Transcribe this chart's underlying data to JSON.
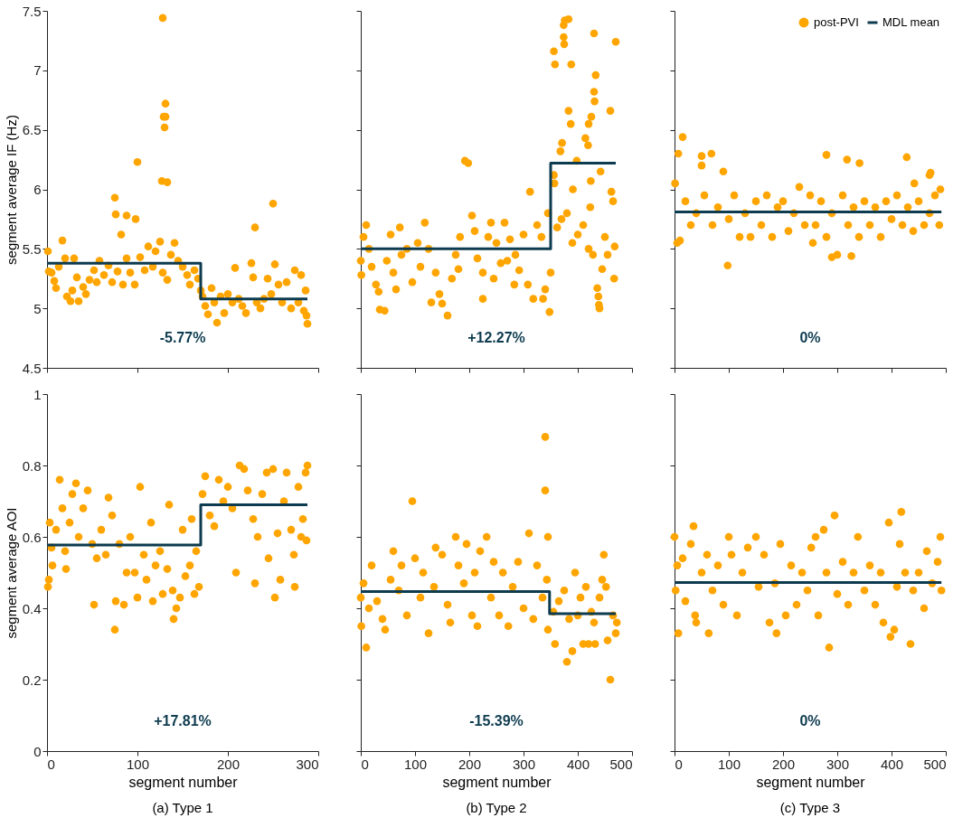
{
  "chart_data": [
    {
      "type": "scatter",
      "ylabel": "segment average IF (Hz)",
      "xlim": [
        0,
        300
      ],
      "xticks": [
        0,
        100,
        200,
        300
      ],
      "ylim": [
        4.5,
        7.5
      ],
      "yticks": [
        4.5,
        5,
        5.5,
        6,
        6.5,
        7,
        7.5
      ],
      "tick_labels": "y",
      "marker": "circle",
      "annotations": [
        "-5.77%"
      ],
      "series": [
        {
          "color": "#ffa500",
          "x": [
            1,
            2,
            5,
            8,
            10,
            13,
            17,
            20,
            22,
            26,
            28,
            30,
            33,
            35,
            40,
            43,
            47,
            52,
            55,
            58,
            63,
            68,
            72,
            78,
            84,
            88,
            92,
            97,
            103,
            108,
            112,
            117,
            120,
            125,
            128,
            133,
            137,
            141,
            145,
            150,
            155,
            158,
            163,
            167,
            170,
            172,
            175,
            178,
            182,
            185,
            188,
            192,
            196,
            200,
            205,
            208,
            212,
            216,
            220,
            226,
            228,
            232,
            236,
            240,
            244,
            248,
            252,
            256,
            260,
            265,
            270,
            274,
            278,
            281,
            284,
            286,
            287,
            288,
            128,
            131,
            129,
            131,
            130,
            127,
            133,
            100,
            75,
            76,
            88,
            98,
            82,
            250,
            230
          ],
          "values": [
            5.48,
            5.31,
            5.3,
            5.23,
            5.17,
            5.35,
            5.57,
            5.42,
            5.1,
            5.06,
            5.15,
            5.42,
            5.26,
            5.06,
            5.18,
            5.12,
            5.24,
            5.32,
            5.22,
            5.4,
            5.28,
            5.36,
            5.22,
            5.31,
            5.2,
            5.42,
            5.3,
            5.2,
            5.43,
            5.32,
            5.52,
            5.35,
            5.48,
            5.56,
            5.3,
            5.24,
            5.45,
            5.55,
            5.4,
            5.35,
            5.28,
            5.2,
            5.32,
            5.25,
            5.15,
            5.1,
            5.02,
            4.95,
            5.17,
            5.05,
            4.88,
            5.1,
            4.96,
            5.12,
            5.05,
            5.34,
            5.08,
            5.02,
            4.96,
            5.38,
            5.26,
            5.05,
            5.0,
            5.08,
            5.25,
            5.12,
            5.37,
            5.2,
            5.05,
            5.22,
            5.0,
            5.32,
            5.05,
            5.28,
            4.98,
            5.15,
            4.94,
            4.87,
            7.44,
            6.72,
            6.61,
            6.61,
            6.52,
            6.07,
            6.06,
            6.23,
            5.93,
            5.79,
            5.78,
            5.75,
            5.62,
            5.88,
            5.68
          ]
        },
        {
          "type": "line",
          "marker": "none",
          "color": "#0d3b4f",
          "x": [
            0,
            170,
            170,
            288
          ],
          "values": [
            5.38,
            5.38,
            5.08,
            5.08
          ]
        }
      ]
    },
    {
      "type": "scatter",
      "xlim": [
        0,
        500
      ],
      "xticks": [
        0,
        100,
        200,
        300,
        400,
        500
      ],
      "ylim": [
        4.5,
        7.5
      ],
      "yticks": [
        4.5,
        5,
        5.5,
        6,
        6.5,
        7,
        7.5
      ],
      "tick_labels": false,
      "marker": "circle",
      "annotations": [
        "+12.27%"
      ],
      "series": [
        {
          "color": "#ffa500",
          "x": [
            0,
            1,
            5,
            10,
            15,
            20,
            28,
            33,
            35,
            44,
            48,
            55,
            60,
            65,
            72,
            75,
            95,
            105,
            118,
            125,
            130,
            138,
            145,
            150,
            160,
            168,
            175,
            183,
            192,
            198,
            205,
            210,
            215,
            225,
            225,
            235,
            240,
            250,
            258,
            265,
            275,
            285,
            292,
            300,
            308,
            312,
            318,
            325,
            333,
            345,
            283,
            270,
            110,
            85,
            180,
            245,
            356,
            358,
            374,
            376,
            383,
            374,
            375,
            388,
            430,
            470,
            430,
            431,
            433,
            425,
            387,
            383,
            371,
            368,
            414,
            419,
            420,
            424,
            442,
            460,
            398,
            356,
            357,
            391,
            423,
            462,
            465,
            428,
            440,
            438,
            436,
            439,
            467,
            445,
            348,
            340,
            336,
            350,
            370,
            380,
            362,
            390,
            400,
            410,
            420,
            450,
            455,
            468
          ],
          "values": [
            5.4,
            5.28,
            5.6,
            5.7,
            5.5,
            5.35,
            5.2,
            5.14,
            4.99,
            4.98,
            5.4,
            5.62,
            5.3,
            5.16,
            5.68,
            5.45,
            5.22,
            5.55,
            5.72,
            5.5,
            5.05,
            5.3,
            5.12,
            5.04,
            4.94,
            5.25,
            5.45,
            5.6,
            6.24,
            6.22,
            5.78,
            5.65,
            5.42,
            5.3,
            5.08,
            5.6,
            5.72,
            5.55,
            5.38,
            5.72,
            5.58,
            5.45,
            5.32,
            5.62,
            5.2,
            5.98,
            5.08,
            5.7,
            5.6,
            5.8,
            5.2,
            5.4,
            5.35,
            5.5,
            5.33,
            5.25,
            7.16,
            7.05,
            7.38,
            7.42,
            7.43,
            7.28,
            7.22,
            7.05,
            7.31,
            7.24,
            6.82,
            6.74,
            6.96,
            6.61,
            6.55,
            6.66,
            6.39,
            6.32,
            6.43,
            6.37,
            6.55,
            6.07,
            6.15,
            6.66,
            6.24,
            6.12,
            6.05,
            6.0,
            5.85,
            5.98,
            5.9,
            5.45,
            5.0,
            5.1,
            5.17,
            5.03,
            5.25,
            5.33,
            4.97,
            5.16,
            5.08,
            5.3,
            5.75,
            5.8,
            5.68,
            5.55,
            5.62,
            5.7,
            5.5,
            5.6,
            5.45,
            5.52
          ]
        },
        {
          "type": "line",
          "marker": "none",
          "color": "#0d3b4f",
          "x": [
            0,
            350,
            350,
            470
          ],
          "values": [
            5.5,
            5.5,
            6.22,
            6.22
          ]
        }
      ]
    },
    {
      "type": "scatter",
      "xlim": [
        0,
        500
      ],
      "xticks": [
        0,
        100,
        200,
        300,
        400,
        500
      ],
      "ylim": [
        4.5,
        7.5
      ],
      "yticks": [
        4.5,
        5,
        5.5,
        6,
        6.5,
        7,
        7.5
      ],
      "tick_labels": false,
      "marker": "circle",
      "legend": "top right",
      "annotations": [
        "0%"
      ],
      "series": [
        {
          "name": "post-PVI",
          "color": "#ffa500",
          "x": [
            1,
            7,
            15,
            50,
            50,
            68,
            90,
            98,
            280,
            318,
            341,
            428,
            442,
            470,
            472,
            290,
            300,
            5,
            10,
            255,
            326,
            20,
            30,
            40,
            55,
            70,
            80,
            100,
            110,
            120,
            130,
            140,
            150,
            160,
            170,
            180,
            190,
            200,
            210,
            220,
            230,
            240,
            250,
            260,
            270,
            280,
            290,
            310,
            320,
            330,
            340,
            350,
            360,
            370,
            380,
            390,
            400,
            410,
            420,
            430,
            440,
            450,
            460,
            470,
            480,
            490,
            488
          ],
          "values": [
            6.05,
            6.3,
            6.44,
            6.28,
            6.2,
            6.3,
            6.15,
            5.36,
            6.29,
            6.25,
            6.22,
            6.27,
            6.05,
            6.12,
            6.14,
            5.43,
            5.45,
            5.55,
            5.57,
            5.55,
            5.44,
            5.9,
            5.7,
            5.8,
            5.95,
            5.7,
            5.85,
            5.75,
            5.95,
            5.6,
            5.8,
            5.6,
            5.9,
            5.7,
            5.95,
            5.6,
            5.85,
            5.9,
            5.65,
            5.8,
            6.02,
            5.7,
            5.95,
            5.7,
            5.9,
            5.6,
            5.8,
            5.95,
            5.7,
            5.85,
            5.6,
            5.9,
            5.7,
            5.85,
            5.6,
            5.9,
            5.75,
            5.95,
            5.7,
            5.85,
            5.65,
            5.9,
            5.7,
            5.8,
            5.95,
            6.0,
            5.7
          ]
        },
        {
          "type": "line",
          "marker": "none",
          "name": "MDL mean",
          "color": "#0d3b4f",
          "x": [
            0,
            492
          ],
          "values": [
            5.81,
            5.81
          ]
        }
      ]
    },
    {
      "type": "scatter",
      "title": "(a) Type 1",
      "xlabel": "segment number",
      "ylabel": "segment average AOI",
      "xlim": [
        0,
        300
      ],
      "xticks": [
        0,
        100,
        200,
        300
      ],
      "ylim": [
        0,
        1
      ],
      "yticks": [
        0,
        0.2,
        0.4,
        0.6,
        0.8,
        1
      ],
      "marker": "circle",
      "annotations": [
        "+17.81%"
      ],
      "series": [
        {
          "color": "#ffa500",
          "x": [
            1,
            2,
            3,
            5,
            6,
            10,
            14,
            17,
            20,
            21,
            25,
            28,
            32,
            35,
            40,
            45,
            50,
            52,
            55,
            60,
            65,
            68,
            72,
            75,
            76,
            80,
            85,
            88,
            92,
            97,
            100,
            103,
            107,
            110,
            115,
            117,
            120,
            125,
            128,
            133,
            135,
            139,
            140,
            143,
            147,
            150,
            153,
            158,
            160,
            163,
            165,
            168,
            172,
            175,
            180,
            185,
            190,
            195,
            200,
            205,
            209,
            213,
            218,
            222,
            228,
            230,
            233,
            238,
            243,
            245,
            250,
            252,
            255,
            258,
            262,
            265,
            270,
            273,
            274,
            278,
            281,
            283,
            286,
            288,
            287
          ],
          "values": [
            0.46,
            0.48,
            0.64,
            0.57,
            0.52,
            0.62,
            0.76,
            0.68,
            0.56,
            0.51,
            0.64,
            0.72,
            0.75,
            0.6,
            0.68,
            0.73,
            0.58,
            0.41,
            0.54,
            0.62,
            0.55,
            0.71,
            0.66,
            0.34,
            0.42,
            0.58,
            0.41,
            0.5,
            0.6,
            0.5,
            0.43,
            0.74,
            0.55,
            0.48,
            0.64,
            0.42,
            0.52,
            0.56,
            0.44,
            0.51,
            0.69,
            0.45,
            0.37,
            0.4,
            0.43,
            0.62,
            0.49,
            0.52,
            0.65,
            0.44,
            0.56,
            0.46,
            0.72,
            0.77,
            0.66,
            0.63,
            0.76,
            0.7,
            0.74,
            0.68,
            0.5,
            0.8,
            0.79,
            0.73,
            0.65,
            0.47,
            0.6,
            0.72,
            0.78,
            0.54,
            0.79,
            0.43,
            0.61,
            0.48,
            0.7,
            0.78,
            0.62,
            0.55,
            0.46,
            0.74,
            0.6,
            0.65,
            0.78,
            0.8,
            0.59
          ]
        },
        {
          "type": "line",
          "marker": "none",
          "color": "#0d3b4f",
          "x": [
            0,
            170,
            170,
            288
          ],
          "values": [
            0.577,
            0.577,
            0.69,
            0.69
          ]
        }
      ]
    },
    {
      "type": "scatter",
      "title": "(b) Type 2",
      "xlabel": "segment number",
      "xlim": [
        0,
        500
      ],
      "xticks": [
        0,
        100,
        200,
        300,
        400,
        500
      ],
      "ylim": [
        0,
        1
      ],
      "yticks": [
        0,
        0.2,
        0.4,
        0.6,
        0.8,
        1
      ],
      "tick_labels": "x",
      "marker": "circle",
      "annotations": [
        "-15.39%"
      ],
      "series": [
        {
          "color": "#ffa500",
          "x": [
            0,
            1,
            5,
            10,
            15,
            20,
            30,
            40,
            45,
            55,
            60,
            70,
            75,
            85,
            95,
            100,
            110,
            115,
            125,
            135,
            138,
            150,
            160,
            165,
            175,
            180,
            190,
            195,
            205,
            210,
            215,
            220,
            232,
            240,
            245,
            255,
            262,
            272,
            280,
            290,
            300,
            310,
            318,
            325,
            335,
            340,
            340,
            343,
            345,
            345,
            355,
            358,
            365,
            375,
            380,
            384,
            390,
            395,
            405,
            410,
            415,
            420,
            425,
            432,
            440,
            445,
            448,
            452,
            455,
            460,
            465,
            470,
            472,
            430,
            400
          ],
          "values": [
            0.43,
            0.35,
            0.47,
            0.29,
            0.4,
            0.52,
            0.42,
            0.37,
            0.34,
            0.48,
            0.56,
            0.45,
            0.52,
            0.38,
            0.7,
            0.54,
            0.43,
            0.5,
            0.33,
            0.46,
            0.57,
            0.55,
            0.41,
            0.36,
            0.6,
            0.52,
            0.47,
            0.58,
            0.38,
            0.5,
            0.35,
            0.56,
            0.6,
            0.43,
            0.53,
            0.38,
            0.5,
            0.35,
            0.46,
            0.53,
            0.4,
            0.61,
            0.37,
            0.52,
            0.43,
            0.88,
            0.73,
            0.48,
            0.6,
            0.34,
            0.39,
            0.3,
            0.42,
            0.45,
            0.25,
            0.37,
            0.28,
            0.5,
            0.43,
            0.3,
            0.46,
            0.3,
            0.39,
            0.3,
            0.43,
            0.48,
            0.55,
            0.46,
            0.31,
            0.2,
            0.38,
            0.33,
            0.36,
            0.36,
            0.38
          ]
        },
        {
          "type": "line",
          "marker": "none",
          "color": "#0d3b4f",
          "x": [
            0,
            348,
            348,
            470
          ],
          "values": [
            0.447,
            0.447,
            0.385,
            0.385
          ]
        }
      ]
    },
    {
      "type": "scatter",
      "title": "(c) Type 3",
      "xlabel": "segment number",
      "xlim": [
        0,
        500
      ],
      "xticks": [
        0,
        100,
        200,
        300,
        400,
        500
      ],
      "ylim": [
        0,
        1
      ],
      "yticks": [
        0,
        0.2,
        0.4,
        0.6,
        0.8,
        1
      ],
      "tick_labels": "x",
      "marker": "circle",
      "annotations": [
        "0%"
      ],
      "series": [
        {
          "color": "#ffa500",
          "x": [
            0,
            2,
            5,
            7,
            15,
            20,
            30,
            35,
            38,
            40,
            50,
            60,
            63,
            70,
            80,
            90,
            100,
            105,
            115,
            125,
            135,
            150,
            155,
            165,
            175,
            185,
            188,
            195,
            205,
            215,
            225,
            235,
            245,
            252,
            260,
            265,
            275,
            280,
            285,
            295,
            300,
            310,
            320,
            330,
            338,
            350,
            360,
            370,
            380,
            385,
            395,
            398,
            405,
            410,
            415,
            418,
            425,
            435,
            440,
            450,
            460,
            465,
            475,
            485,
            490,
            492
          ],
          "values": [
            0.6,
            0.45,
            0.52,
            0.33,
            0.54,
            0.42,
            0.58,
            0.63,
            0.38,
            0.36,
            0.5,
            0.55,
            0.33,
            0.45,
            0.52,
            0.41,
            0.6,
            0.55,
            0.38,
            0.5,
            0.57,
            0.6,
            0.46,
            0.55,
            0.36,
            0.47,
            0.33,
            0.58,
            0.38,
            0.52,
            0.41,
            0.5,
            0.45,
            0.57,
            0.6,
            0.38,
            0.62,
            0.5,
            0.29,
            0.66,
            0.44,
            0.53,
            0.41,
            0.5,
            0.6,
            0.45,
            0.52,
            0.41,
            0.5,
            0.36,
            0.64,
            0.32,
            0.34,
            0.46,
            0.58,
            0.67,
            0.5,
            0.3,
            0.45,
            0.5,
            0.4,
            0.56,
            0.47,
            0.53,
            0.6,
            0.45
          ]
        },
        {
          "type": "line",
          "marker": "none",
          "color": "#0d3b4f",
          "x": [
            0,
            492
          ],
          "values": [
            0.472,
            0.472
          ]
        }
      ]
    }
  ]
}
